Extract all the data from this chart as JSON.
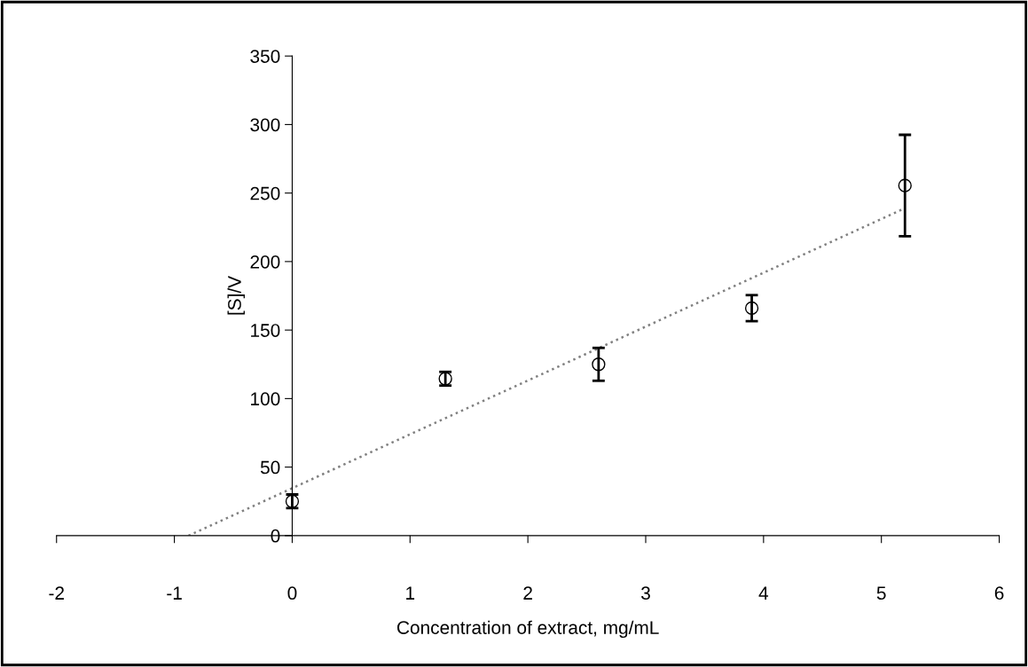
{
  "chart_data": {
    "type": "scatter",
    "xlabel": "Concentration of extract, mg/mL",
    "ylabel": "[S]/V",
    "x": [
      0,
      1.3,
      2.6,
      3.9,
      5.2
    ],
    "series": [
      {
        "color": "#000000",
        "values": [
          25,
          114.5,
          125,
          166,
          255.5
        ],
        "errors": [
          5,
          5,
          12,
          9.5,
          37
        ],
        "marker": "circle"
      },
      {
        "type": "line",
        "color": "#808080",
        "x": [
          -0.88,
          5.2
        ],
        "values": [
          0,
          239
        ],
        "line_style": "dotted"
      }
    ],
    "xlim": [
      -2,
      6
    ],
    "ylim": [
      0,
      350
    ],
    "xticks": [
      -2,
      -1,
      0,
      1,
      2,
      3,
      4,
      5,
      6
    ],
    "yticks": [
      0,
      50,
      100,
      150,
      200,
      250,
      300,
      350
    ],
    "grid": false,
    "legend": false
  }
}
